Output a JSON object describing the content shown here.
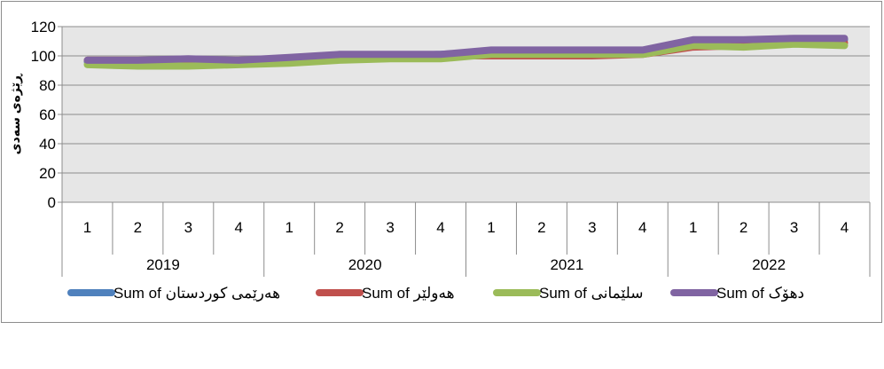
{
  "chart_data": {
    "type": "line",
    "title": "",
    "ylabel": "ڕێژەی سەدی",
    "xlabel": "",
    "ylim": [
      0,
      120
    ],
    "yticks": [
      0,
      20,
      40,
      60,
      80,
      100,
      120
    ],
    "grid": true,
    "legend": "bottom",
    "years": [
      "2019",
      "2020",
      "2021",
      "2022"
    ],
    "quarters": [
      "1",
      "2",
      "3",
      "4"
    ],
    "series": [
      {
        "name": "Sum of هەرێمی کوردستان",
        "color": "#4F81BD",
        "values": [
          96,
          96,
          96,
          97,
          98,
          100,
          100,
          101,
          103,
          103,
          103,
          103,
          108,
          108,
          110,
          111
        ]
      },
      {
        "name": "Sum of هەولێر",
        "color": "#C0504D",
        "values": [
          97,
          97,
          97,
          97,
          98,
          100,
          100,
          100,
          100,
          100,
          100,
          101,
          106,
          107,
          109,
          109
        ]
      },
      {
        "name": "Sum of سلێمانی",
        "color": "#9BBB59",
        "values": [
          94,
          93,
          93,
          94,
          95,
          97,
          98,
          98,
          101,
          101,
          101,
          101,
          107,
          106,
          108,
          107
        ]
      },
      {
        "name": "Sum of دهۆک",
        "color": "#8064A2",
        "values": [
          97,
          97,
          98,
          97,
          99,
          101,
          101,
          101,
          104,
          104,
          104,
          104,
          111,
          111,
          112,
          112
        ]
      }
    ]
  }
}
